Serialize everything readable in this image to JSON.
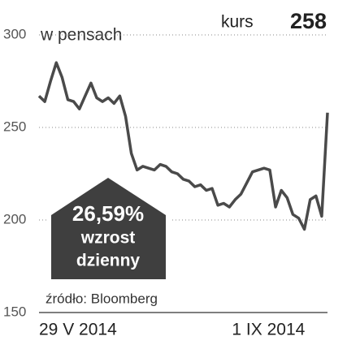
{
  "chart_data": {
    "type": "line",
    "y_label": "w pensach",
    "kurs_label": "kurs",
    "kurs_value": 258,
    "callout": {
      "value": "26,59%",
      "line1": "wzrost",
      "line2": "dzienny"
    },
    "source": "źródło: Bloomberg",
    "categories": [
      "29 V 2014",
      null,
      null,
      null,
      null,
      null,
      null,
      null,
      null,
      null,
      null,
      null,
      null,
      null,
      null,
      null,
      null,
      null,
      null,
      null,
      null,
      null,
      null,
      null,
      null,
      null,
      null,
      null,
      null,
      null,
      null,
      null,
      null,
      null,
      "1 IX 2014",
      null,
      null,
      null,
      null,
      null,
      null,
      null,
      null,
      null,
      null,
      null,
      null,
      null,
      null,
      null,
      null
    ],
    "values": [
      267,
      264,
      275,
      285,
      277,
      265,
      264,
      260,
      267,
      274,
      266,
      264,
      266,
      263,
      267,
      256,
      236,
      227,
      229,
      228,
      227,
      230,
      229,
      226,
      225,
      222,
      221,
      218,
      219,
      216,
      217,
      208,
      209,
      207,
      211,
      214,
      220,
      226,
      227,
      228,
      227,
      207,
      216,
      212,
      203,
      201,
      195,
      211,
      213,
      202,
      258
    ],
    "color": "#4a4a4a",
    "ylim": [
      150,
      300
    ],
    "yticks": [
      150,
      200,
      250,
      300
    ],
    "grid": true
  }
}
